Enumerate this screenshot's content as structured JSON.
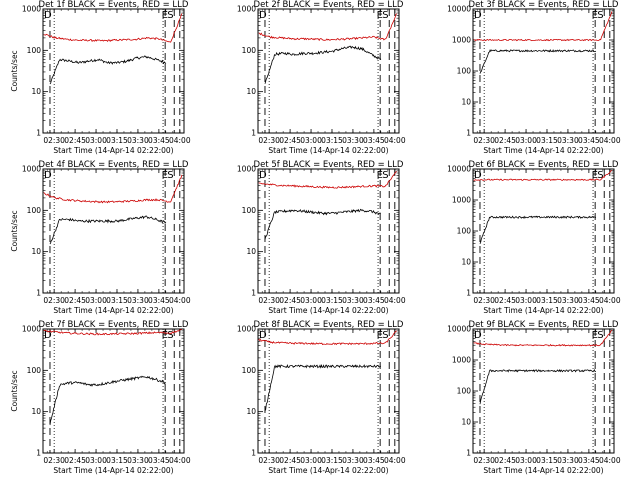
{
  "chart_data": [
    {
      "type": "line",
      "title": "Det 1f BLACK = Events, RED = LLD",
      "xlabel": "Start Time (14-Apr-14 02:22:00)",
      "ylabel": "Counts/sec",
      "yscale": "log",
      "ylim": [
        1,
        1000
      ],
      "yticks": [
        "1",
        "10",
        "100",
        "1000"
      ],
      "xticks": [
        "02:30",
        "02:45",
        "03:00",
        "03:15",
        "03:30",
        "03:45",
        "04:00"
      ],
      "xlim_min": [
        0,
        101
      ],
      "event_start_min": 5,
      "event_end_min": 93,
      "black_markers": {
        "start": 8,
        "end": 86
      },
      "dashed_markers": [
        5,
        87.5,
        94,
        98
      ],
      "letters": [
        {
          "text": "E",
          "at": 85
        },
        {
          "text": "S",
          "at": 89
        }
      ],
      "show_ylabel": true,
      "series": [
        {
          "name": "Events",
          "color": "#000000",
          "values_approx": [
            15,
            60,
            55,
            50,
            55,
            60,
            50,
            50,
            55,
            65,
            70,
            60,
            50
          ]
        },
        {
          "name": "LLD",
          "color": "#cc0000",
          "values_approx": [
            250,
            200,
            185,
            175,
            175,
            170,
            175,
            180,
            185,
            200,
            190,
            155,
            750
          ]
        }
      ]
    },
    {
      "type": "line",
      "title": "Det 2f BLACK = Events, RED = LLD",
      "xlabel": "Start Time (14-Apr-14 02:22:00)",
      "ylabel": "",
      "yscale": "log",
      "ylim": [
        1,
        1000
      ],
      "yticks": [
        "1",
        "10",
        "100",
        "1000"
      ],
      "xticks": [
        "02:30",
        "02:45",
        "03:00",
        "03:15",
        "03:30",
        "03:45",
        "04:00"
      ],
      "xlim_min": [
        0,
        101
      ],
      "event_start_min": 5,
      "event_end_min": 93,
      "black_markers": {
        "start": 8,
        "end": 86
      },
      "dashed_markers": [
        5,
        87.5,
        94,
        98
      ],
      "letters": [
        {
          "text": "E",
          "at": 85
        },
        {
          "text": "S",
          "at": 89
        }
      ],
      "show_ylabel": false,
      "series": [
        {
          "name": "Events",
          "color": "#000000",
          "values_approx": [
            15,
            80,
            85,
            80,
            85,
            85,
            90,
            95,
            110,
            120,
            110,
            80,
            60
          ]
        },
        {
          "name": "LLD",
          "color": "#cc0000",
          "values_approx": [
            260,
            210,
            200,
            190,
            190,
            185,
            180,
            185,
            190,
            200,
            210,
            180,
            800
          ]
        }
      ]
    },
    {
      "type": "line",
      "title": "Det 3f BLACK = Events, RED = LLD",
      "xlabel": "Start Time (14-Apr-14 02:22:00)",
      "ylabel": "",
      "yscale": "log",
      "ylim": [
        1,
        10000
      ],
      "yticks": [
        "1",
        "10",
        "100",
        "1000",
        "10000"
      ],
      "xticks": [
        "02:30",
        "02:45",
        "03:00",
        "03:15",
        "03:30",
        "03:45",
        "04:00"
      ],
      "xlim_min": [
        0,
        101
      ],
      "event_start_min": 5,
      "event_end_min": 93,
      "black_markers": {
        "start": 8,
        "end": 86
      },
      "dashed_markers": [
        5,
        87.5,
        94,
        98
      ],
      "letters": [
        {
          "text": "E",
          "at": 85
        },
        {
          "text": "S",
          "at": 89
        }
      ],
      "show_ylabel": false,
      "series": [
        {
          "name": "Events",
          "color": "#000000",
          "values_approx": [
            80,
            450,
            450,
            450,
            450,
            450,
            450,
            450,
            450,
            450,
            450,
            450,
            450
          ]
        },
        {
          "name": "LLD",
          "color": "#cc0000",
          "values_approx": [
            1000,
            1000,
            1000,
            1000,
            1000,
            1000,
            1000,
            1000,
            1000,
            1000,
            1000,
            1000,
            8000
          ]
        }
      ]
    },
    {
      "type": "line",
      "title": "Det 4f BLACK = Events, RED = LLD",
      "xlabel": "Start Time (14-Apr-14 02:22:00)",
      "ylabel": "Counts/sec",
      "yscale": "log",
      "ylim": [
        1,
        1000
      ],
      "yticks": [
        "1",
        "10",
        "100",
        "1000"
      ],
      "xticks": [
        "02:30",
        "02:45",
        "03:00",
        "03:15",
        "03:30",
        "03:45",
        "04:00"
      ],
      "xlim_min": [
        0,
        101
      ],
      "event_start_min": 5,
      "event_end_min": 93,
      "black_markers": {
        "start": 8,
        "end": 86
      },
      "dashed_markers": [
        5,
        87.5,
        94,
        98
      ],
      "letters": [
        {
          "text": "E",
          "at": 85
        },
        {
          "text": "S",
          "at": 89
        }
      ],
      "show_ylabel": true,
      "series": [
        {
          "name": "Events",
          "color": "#000000",
          "values_approx": [
            15,
            60,
            60,
            55,
            55,
            55,
            55,
            55,
            60,
            65,
            70,
            60,
            50
          ]
        },
        {
          "name": "LLD",
          "color": "#cc0000",
          "values_approx": [
            260,
            200,
            180,
            170,
            165,
            160,
            160,
            165,
            170,
            180,
            180,
            160,
            700
          ]
        }
      ]
    },
    {
      "type": "line",
      "title": "Det 5f BLACK = Events, RED = LLD",
      "xlabel": "Start Time (14-Apr-14 02:22:00)",
      "ylabel": "",
      "yscale": "log",
      "ylim": [
        1,
        1000
      ],
      "yticks": [
        "1",
        "10",
        "100",
        "1000"
      ],
      "xticks": [
        "02:30",
        "02:45",
        "03:00",
        "03:15",
        "03:30",
        "03:45",
        "04:00"
      ],
      "xlim_min": [
        0,
        101
      ],
      "event_start_min": 5,
      "event_end_min": 93,
      "black_markers": {
        "start": 8,
        "end": 86
      },
      "dashed_markers": [
        5,
        87.5,
        94,
        98
      ],
      "letters": [
        {
          "text": "E",
          "at": 85
        },
        {
          "text": "S",
          "at": 89
        }
      ],
      "show_ylabel": false,
      "series": [
        {
          "name": "Events",
          "color": "#000000",
          "values_approx": [
            20,
            90,
            95,
            100,
            95,
            90,
            85,
            85,
            90,
            95,
            100,
            95,
            80
          ]
        },
        {
          "name": "LLD",
          "color": "#cc0000",
          "values_approx": [
            450,
            420,
            400,
            390,
            380,
            370,
            360,
            360,
            370,
            380,
            390,
            380,
            900
          ]
        }
      ]
    },
    {
      "type": "line",
      "title": "Det 6f BLACK = Events, RED = LLD",
      "xlabel": "Start Time (14-Apr-14 02:22:00)",
      "ylabel": "",
      "yscale": "log",
      "ylim": [
        1,
        10000
      ],
      "yticks": [
        "1",
        "10",
        "100",
        "1000",
        "10000"
      ],
      "xticks": [
        "02:30",
        "02:45",
        "03:00",
        "03:15",
        "03:30",
        "03:45",
        "04:00"
      ],
      "xlim_min": [
        0,
        101
      ],
      "event_start_min": 5,
      "event_end_min": 93,
      "black_markers": {
        "start": 8,
        "end": 86
      },
      "dashed_markers": [
        5,
        87.5,
        94,
        98
      ],
      "letters": [
        {
          "text": "E",
          "at": 85
        },
        {
          "text": "S",
          "at": 89
        }
      ],
      "show_ylabel": false,
      "series": [
        {
          "name": "Events",
          "color": "#000000",
          "values_approx": [
            40,
            280,
            280,
            280,
            280,
            280,
            280,
            280,
            280,
            280,
            280,
            280,
            280
          ]
        },
        {
          "name": "LLD",
          "color": "#cc0000",
          "values_approx": [
            4500,
            4500,
            4500,
            4500,
            4500,
            4500,
            4500,
            4500,
            4500,
            4500,
            4500,
            4500,
            9000
          ]
        }
      ]
    },
    {
      "type": "line",
      "title": "Det 7f BLACK = Events, RED = LLD",
      "xlabel": "Start Time (14-Apr-14 02:22:00)",
      "ylabel": "Counts/sec",
      "yscale": "log",
      "ylim": [
        1,
        1000
      ],
      "yticks": [
        "1",
        "10",
        "100",
        "1000"
      ],
      "xticks": [
        "02:30",
        "02:45",
        "03:00",
        "03:15",
        "03:30",
        "03:45",
        "04:00"
      ],
      "xlim_min": [
        0,
        101
      ],
      "event_start_min": 5,
      "event_end_min": 93,
      "black_markers": {
        "start": 8,
        "end": 86
      },
      "dashed_markers": [
        5,
        87.5,
        94,
        98
      ],
      "letters": [
        {
          "text": "E",
          "at": 85
        },
        {
          "text": "S",
          "at": 89
        }
      ],
      "show_ylabel": true,
      "series": [
        {
          "name": "Events",
          "color": "#000000",
          "values_approx": [
            5,
            45,
            50,
            50,
            45,
            45,
            50,
            55,
            60,
            65,
            70,
            60,
            50
          ]
        },
        {
          "name": "LLD",
          "color": "#cc0000",
          "values_approx": [
            900,
            850,
            800,
            780,
            760,
            750,
            760,
            770,
            780,
            800,
            820,
            800,
            950
          ]
        }
      ]
    },
    {
      "type": "line",
      "title": "Det 8f BLACK = Events, RED = LLD",
      "xlabel": "Start Time (14-Apr-14 02:22:00)",
      "ylabel": "",
      "yscale": "log",
      "ylim": [
        1,
        1000
      ],
      "yticks": [
        "1",
        "10",
        "100",
        "1000"
      ],
      "xticks": [
        "02:30",
        "02:45",
        "03:00",
        "03:15",
        "03:30",
        "03:45",
        "04:00"
      ],
      "xlim_min": [
        0,
        101
      ],
      "event_start_min": 5,
      "event_end_min": 93,
      "black_markers": {
        "start": 8,
        "end": 86
      },
      "dashed_markers": [
        5,
        87.5,
        94,
        98
      ],
      "letters": [
        {
          "text": "E",
          "at": 85
        },
        {
          "text": "S",
          "at": 89
        }
      ],
      "show_ylabel": false,
      "series": [
        {
          "name": "Events",
          "color": "#000000",
          "values_approx": [
            10,
            125,
            125,
            125,
            125,
            125,
            125,
            125,
            125,
            125,
            125,
            125,
            125
          ]
        },
        {
          "name": "LLD",
          "color": "#cc0000",
          "values_approx": [
            550,
            480,
            460,
            450,
            450,
            440,
            440,
            440,
            440,
            440,
            450,
            450,
            900
          ]
        }
      ]
    },
    {
      "type": "line",
      "title": "Det 9f BLACK = Events, RED = LLD",
      "xlabel": "Start Time (14-Apr-14 02:22:00)",
      "ylabel": "",
      "yscale": "log",
      "ylim": [
        1,
        10000
      ],
      "yticks": [
        "1",
        "10",
        "100",
        "1000",
        "10000"
      ],
      "xticks": [
        "02:30",
        "02:45",
        "03:00",
        "03:15",
        "03:30",
        "03:45",
        "04:00"
      ],
      "xlim_min": [
        0,
        101
      ],
      "event_start_min": 5,
      "event_end_min": 93,
      "black_markers": {
        "start": 8,
        "end": 86
      },
      "dashed_markers": [
        5,
        87.5,
        94,
        98
      ],
      "letters": [
        {
          "text": "E",
          "at": 85
        },
        {
          "text": "S",
          "at": 89
        }
      ],
      "show_ylabel": false,
      "series": [
        {
          "name": "Events",
          "color": "#000000",
          "values_approx": [
            40,
            450,
            450,
            450,
            450,
            450,
            450,
            450,
            450,
            450,
            450,
            450,
            450
          ]
        },
        {
          "name": "LLD",
          "color": "#cc0000",
          "values_approx": [
            3500,
            3200,
            3100,
            3000,
            3000,
            3000,
            3000,
            3000,
            3000,
            3000,
            3000,
            3000,
            9000
          ]
        }
      ]
    }
  ]
}
